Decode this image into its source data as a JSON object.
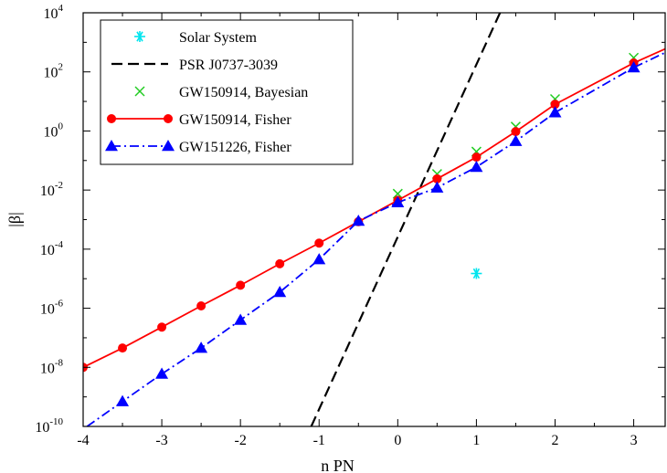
{
  "chart_data": {
    "type": "line",
    "title": "",
    "xlabel": "n PN",
    "ylabel": "|β|",
    "xlim": [
      -4,
      3.4
    ],
    "ylim_log10": [
      -10,
      4
    ],
    "y_scale": "log",
    "grid": false,
    "legend_position": "top-left",
    "x_ticks": [
      -4,
      -3,
      -2,
      -1,
      0,
      1,
      2,
      3
    ],
    "y_tick_exponents": [
      -10,
      -8,
      -6,
      -4,
      -2,
      0,
      2,
      4
    ],
    "y_tick_base": "10",
    "series": [
      {
        "name": "Solar System",
        "style": "asterisk",
        "color": "#00e5ee",
        "points": [
          {
            "x": 1.0,
            "y": 1.5e-05
          }
        ]
      },
      {
        "name": "PSR J0737-3039",
        "style": "dashed-line",
        "color": "#000000",
        "points": [
          {
            "x": -1.1,
            "y": 1e-10
          },
          {
            "x": 1.3,
            "y": 10000.0
          }
        ]
      },
      {
        "name": "GW150914, Bayesian",
        "style": "cross",
        "color": "#22cc22",
        "points": [
          {
            "x": 0,
            "y": 0.0075
          },
          {
            "x": 0.5,
            "y": 0.035
          },
          {
            "x": 1,
            "y": 0.2
          },
          {
            "x": 1.5,
            "y": 1.4
          },
          {
            "x": 2,
            "y": 12
          },
          {
            "x": 3,
            "y": 300
          }
        ]
      },
      {
        "name": "GW150914, Fisher",
        "style": "solid-line-circle",
        "color": "#ff0000",
        "points": [
          {
            "x": -4,
            "y": 1e-08
          },
          {
            "x": -3.5,
            "y": 4.5e-08
          },
          {
            "x": -3,
            "y": 2.3e-07
          },
          {
            "x": -2.5,
            "y": 1.2e-06
          },
          {
            "x": -2,
            "y": 6e-06
          },
          {
            "x": -1.5,
            "y": 3.2e-05
          },
          {
            "x": -1,
            "y": 0.00016
          },
          {
            "x": -0.5,
            "y": 0.00085
          },
          {
            "x": 0,
            "y": 0.0045
          },
          {
            "x": 0.5,
            "y": 0.024
          },
          {
            "x": 1,
            "y": 0.13
          },
          {
            "x": 1.5,
            "y": 0.95
          },
          {
            "x": 2,
            "y": 8
          },
          {
            "x": 3,
            "y": 200
          }
        ],
        "line_extension": [
          {
            "x": 3.4,
            "y": 600
          }
        ]
      },
      {
        "name": "GW151226, Fisher",
        "style": "dashdot-line-triangle",
        "color": "#0000ff",
        "points": [
          {
            "x": -3.5,
            "y": 7e-10
          },
          {
            "x": -3,
            "y": 6e-09
          },
          {
            "x": -2.5,
            "y": 4.5e-08
          },
          {
            "x": -2,
            "y": 4e-07
          },
          {
            "x": -1.5,
            "y": 3.5e-06
          },
          {
            "x": -1,
            "y": 4.5e-05
          },
          {
            "x": -0.5,
            "y": 0.0009
          },
          {
            "x": 0,
            "y": 0.0038
          },
          {
            "x": 0.5,
            "y": 0.012
          },
          {
            "x": 1,
            "y": 0.06
          },
          {
            "x": 1.5,
            "y": 0.45
          },
          {
            "x": 2,
            "y": 4.2
          },
          {
            "x": 3,
            "y": 140
          }
        ],
        "line_extension_start": [
          {
            "x": -3.95,
            "y": 1e-10
          }
        ],
        "line_extension": [
          {
            "x": 3.4,
            "y": 450
          }
        ]
      }
    ]
  }
}
